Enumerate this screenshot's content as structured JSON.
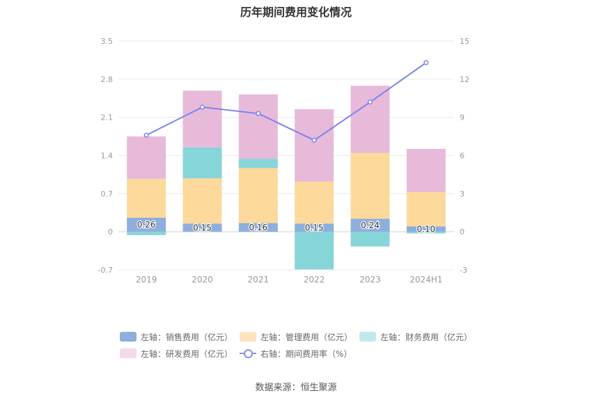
{
  "chart_data": {
    "type": "bar",
    "title": "历年期间费用变化情况",
    "categories": [
      "2019",
      "2020",
      "2021",
      "2022",
      "2023",
      "2024H1"
    ],
    "stacked": true,
    "y_left": {
      "ticks": [
        "3.5",
        "2.8",
        "2.1",
        "1.4",
        "0.7",
        "0",
        "-0.7"
      ],
      "range": [
        -0.7,
        3.5
      ]
    },
    "y_right": {
      "ticks": [
        "15",
        "12",
        "9",
        "6",
        "3",
        "0",
        "-3"
      ],
      "range": [
        -3,
        15
      ]
    },
    "grid": true,
    "legend_position": "bottom",
    "series": [
      {
        "name": "左轴：销售费用（亿元）",
        "axis": "left",
        "color": "#8eaedd",
        "values": [
          0.26,
          0.15,
          0.16,
          0.15,
          0.24,
          0.1
        ],
        "labels": [
          "0.26",
          "0.15",
          "0.16",
          "0.15",
          "0.24",
          "0.10"
        ]
      },
      {
        "name": "左轴：管理费用（亿元）",
        "axis": "left",
        "color": "#fdd99b",
        "values": [
          0.71,
          0.83,
          1.01,
          0.77,
          1.21,
          0.63
        ]
      },
      {
        "name": "左轴：财务费用（亿元）",
        "axis": "left",
        "color": "#86d5d9",
        "values": [
          -0.06,
          0.57,
          0.17,
          -0.69,
          -0.27,
          -0.03
        ]
      },
      {
        "name": "左轴：研发费用（亿元）",
        "axis": "left",
        "color": "#e7bada",
        "values": [
          0.78,
          1.04,
          1.18,
          1.33,
          1.23,
          0.79
        ]
      },
      {
        "name": "右轴：期间费用率（%）",
        "axis": "right",
        "type": "line",
        "color": "#7b83eb",
        "values": [
          7.6,
          9.8,
          9.3,
          7.2,
          10.2,
          13.3
        ]
      }
    ]
  },
  "legend": {
    "items": [
      {
        "label": "左轴：销售费用（亿元）",
        "color": "#8eaedd"
      },
      {
        "label": "左轴：管理费用（亿元）",
        "color": "#fde4bd"
      },
      {
        "label": "左轴：财务费用（亿元）",
        "color": "#bfe9eb"
      },
      {
        "label": "左轴：研发费用（亿元）",
        "color": "#f3d9ea"
      },
      {
        "label": "右轴：期间费用率（%）",
        "color": "#8a8fe8"
      }
    ]
  },
  "source": "数据来源：恒生聚源"
}
